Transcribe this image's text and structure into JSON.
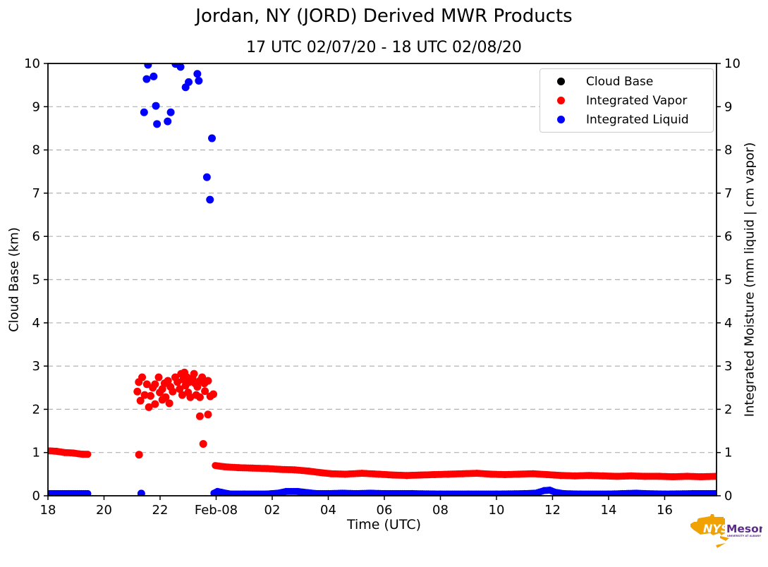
{
  "chart": {
    "title": "Jordan, NY (JORD) Derived MWR Products",
    "subtitle": "17 UTC 02/07/20 - 18 UTC 02/08/20",
    "xlabel": "Time (UTC)",
    "ylabel_left": "Cloud Base (km)",
    "ylabel_right": "Integrated Moisture (mm liquid | cm vapor)"
  },
  "legend": {
    "items": [
      {
        "label": "Cloud Base",
        "color": "#000000"
      },
      {
        "label": "Integrated Vapor",
        "color": "#ff0000"
      },
      {
        "label": "Integrated Liquid",
        "color": "#0000ff"
      }
    ]
  },
  "logo": {
    "nys": "NYS",
    "mesonet": "Mesonet",
    "tagline": "UNIVERSITY AT ALBANY",
    "orange": "#f0a202",
    "purple": "#5b2d86"
  },
  "chart_data": {
    "type": "scatter",
    "title": "Jordan, NY (JORD) Derived MWR Products",
    "subtitle": "17 UTC 02/07/20 - 18 UTC 02/08/20",
    "xlabel": "Time (UTC)",
    "ylabel_left": "Cloud Base (km)",
    "ylabel_right": "Integrated Moisture (mm liquid | cm vapor)",
    "x_axis": {
      "units": "hours since 00 UTC 02/07/20",
      "range": [
        18,
        41.85
      ],
      "ticks": [
        {
          "h": 18,
          "label": "18"
        },
        {
          "h": 20,
          "label": "20"
        },
        {
          "h": 22,
          "label": "22"
        },
        {
          "h": 24,
          "label": "Feb-08"
        },
        {
          "h": 26,
          "label": "02"
        },
        {
          "h": 28,
          "label": "04"
        },
        {
          "h": 30,
          "label": "06"
        },
        {
          "h": 32,
          "label": "08"
        },
        {
          "h": 34,
          "label": "10"
        },
        {
          "h": 36,
          "label": "12"
        },
        {
          "h": 38,
          "label": "14"
        },
        {
          "h": 40,
          "label": "16"
        }
      ]
    },
    "y_axis": {
      "range": [
        0,
        10
      ],
      "ticks": [
        0,
        1,
        2,
        3,
        4,
        5,
        6,
        7,
        8,
        9,
        10
      ]
    },
    "grid": {
      "horizontal_at": [
        1,
        2,
        3,
        4,
        5,
        6,
        7,
        8,
        9
      ],
      "style": "dashed",
      "color": "#b0b0b0"
    },
    "legend_position": "upper right",
    "marker_radius": 5.5,
    "band_radius": 5,
    "series": [
      {
        "name": "Cloud Base",
        "color": "#000000",
        "points": [],
        "bands": []
      },
      {
        "name": "Integrated Vapor",
        "color": "#ff0000",
        "points": [
          [
            21.36,
            2.74
          ],
          [
            21.24,
            2.63
          ],
          [
            21.53,
            2.58
          ],
          [
            21.74,
            2.5
          ],
          [
            21.19,
            2.41
          ],
          [
            21.45,
            2.33
          ],
          [
            21.66,
            2.31
          ],
          [
            21.95,
            2.74
          ],
          [
            21.82,
            2.58
          ],
          [
            21.99,
            2.39
          ],
          [
            22.16,
            2.6
          ],
          [
            22.08,
            2.47
          ],
          [
            22.28,
            2.66
          ],
          [
            22.37,
            2.52
          ],
          [
            22.2,
            2.28
          ],
          [
            22.45,
            2.41
          ],
          [
            22.54,
            2.74
          ],
          [
            22.62,
            2.63
          ],
          [
            22.75,
            2.82
          ],
          [
            22.87,
            2.85
          ],
          [
            22.83,
            2.69
          ],
          [
            22.96,
            2.74
          ],
          [
            23.04,
            2.63
          ],
          [
            22.91,
            2.55
          ],
          [
            22.7,
            2.47
          ],
          [
            22.79,
            2.33
          ],
          [
            23.0,
            2.39
          ],
          [
            23.16,
            2.71
          ],
          [
            23.25,
            2.6
          ],
          [
            23.21,
            2.82
          ],
          [
            23.33,
            2.52
          ],
          [
            23.42,
            2.66
          ],
          [
            23.5,
            2.74
          ],
          [
            23.58,
            2.6
          ],
          [
            23.71,
            2.66
          ],
          [
            23.79,
            2.3
          ],
          [
            23.42,
            2.28
          ],
          [
            23.29,
            2.33
          ],
          [
            23.08,
            2.28
          ],
          [
            21.82,
            2.12
          ],
          [
            22.33,
            2.14
          ],
          [
            22.08,
            2.22
          ],
          [
            21.6,
            2.05
          ],
          [
            23.6,
            2.42
          ],
          [
            21.3,
            2.2
          ],
          [
            23.9,
            2.35
          ],
          [
            21.25,
            0.95
          ],
          [
            23.42,
            1.84
          ],
          [
            23.71,
            1.88
          ],
          [
            23.54,
            1.2
          ]
        ],
        "bands": [
          [
            [
              18.0,
              1.04
            ],
            [
              18.3,
              1.03
            ],
            [
              18.6,
              1.0
            ],
            [
              18.9,
              0.99
            ],
            [
              19.1,
              0.97
            ],
            [
              19.25,
              0.96
            ],
            [
              19.42,
              0.96
            ]
          ],
          [
            [
              23.97,
              0.7
            ],
            [
              24.3,
              0.67
            ],
            [
              24.8,
              0.65
            ],
            [
              25.3,
              0.64
            ],
            [
              25.8,
              0.63
            ],
            [
              26.3,
              0.61
            ],
            [
              26.8,
              0.6
            ],
            [
              27.3,
              0.57
            ],
            [
              27.8,
              0.53
            ],
            [
              28.1,
              0.51
            ],
            [
              28.6,
              0.5
            ],
            [
              29.2,
              0.52
            ],
            [
              29.8,
              0.5
            ],
            [
              30.3,
              0.48
            ],
            [
              30.8,
              0.47
            ],
            [
              31.3,
              0.48
            ],
            [
              31.8,
              0.49
            ],
            [
              32.3,
              0.5
            ],
            [
              32.8,
              0.51
            ],
            [
              33.3,
              0.52
            ],
            [
              33.8,
              0.5
            ],
            [
              34.3,
              0.49
            ],
            [
              34.8,
              0.5
            ],
            [
              35.3,
              0.51
            ],
            [
              35.8,
              0.49
            ],
            [
              36.3,
              0.47
            ],
            [
              36.8,
              0.46
            ],
            [
              37.3,
              0.47
            ],
            [
              37.8,
              0.46
            ],
            [
              38.3,
              0.45
            ],
            [
              38.8,
              0.46
            ],
            [
              39.3,
              0.45
            ],
            [
              39.8,
              0.45
            ],
            [
              40.3,
              0.44
            ],
            [
              40.8,
              0.45
            ],
            [
              41.3,
              0.44
            ],
            [
              41.85,
              0.45
            ]
          ]
        ]
      },
      {
        "name": "Integrated Liquid",
        "color": "#0000ff",
        "points": [
          [
            21.57,
            9.97
          ],
          [
            22.55,
            9.99
          ],
          [
            21.52,
            9.64
          ],
          [
            21.77,
            9.7
          ],
          [
            22.73,
            9.92
          ],
          [
            23.33,
            9.76
          ],
          [
            23.38,
            9.6
          ],
          [
            23.02,
            9.57
          ],
          [
            22.91,
            9.45
          ],
          [
            21.85,
            9.02
          ],
          [
            21.43,
            8.87
          ],
          [
            22.38,
            8.87
          ],
          [
            21.89,
            8.6
          ],
          [
            22.27,
            8.66
          ],
          [
            23.85,
            8.27
          ],
          [
            23.67,
            7.37
          ],
          [
            23.78,
            6.85
          ],
          [
            21.33,
            0.05
          ]
        ],
        "bands": [
          [
            [
              18.0,
              0.05
            ],
            [
              19.42,
              0.05
            ]
          ],
          [
            [
              23.92,
              0.06
            ],
            [
              24.05,
              0.1
            ],
            [
              24.2,
              0.08
            ],
            [
              24.5,
              0.04
            ],
            [
              25.0,
              0.04
            ],
            [
              25.8,
              0.04
            ],
            [
              26.2,
              0.06
            ],
            [
              26.5,
              0.1
            ],
            [
              26.9,
              0.1
            ],
            [
              27.3,
              0.07
            ],
            [
              27.6,
              0.05
            ],
            [
              28.0,
              0.05
            ],
            [
              28.5,
              0.06
            ],
            [
              29.0,
              0.05
            ],
            [
              29.5,
              0.06
            ],
            [
              30.0,
              0.05
            ],
            [
              31.0,
              0.05
            ],
            [
              32.0,
              0.04
            ],
            [
              33.0,
              0.04
            ],
            [
              34.0,
              0.04
            ],
            [
              35.0,
              0.05
            ],
            [
              35.4,
              0.06
            ],
            [
              35.7,
              0.12
            ],
            [
              35.9,
              0.13
            ],
            [
              36.1,
              0.08
            ],
            [
              36.4,
              0.05
            ],
            [
              37.0,
              0.04
            ],
            [
              38.0,
              0.04
            ],
            [
              39.0,
              0.06
            ],
            [
              39.3,
              0.05
            ],
            [
              40.0,
              0.04
            ],
            [
              41.0,
              0.05
            ],
            [
              41.85,
              0.05
            ]
          ]
        ]
      }
    ]
  }
}
